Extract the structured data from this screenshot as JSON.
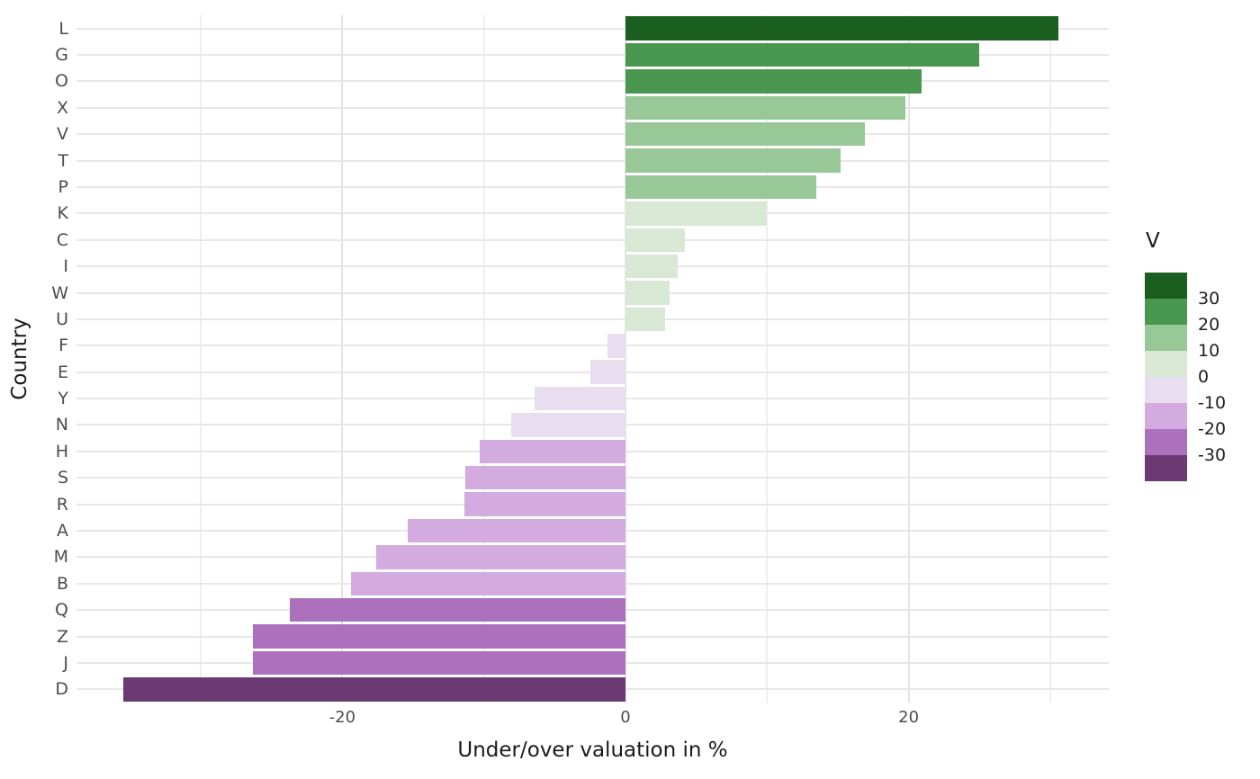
{
  "chart_data": {
    "type": "bar",
    "orientation": "horizontal",
    "title": "",
    "xlabel": "Under/over valuation in %",
    "ylabel": "Country",
    "categories": [
      "L",
      "G",
      "O",
      "X",
      "V",
      "T",
      "P",
      "K",
      "C",
      "I",
      "W",
      "U",
      "F",
      "E",
      "Y",
      "N",
      "H",
      "S",
      "R",
      "A",
      "M",
      "B",
      "Q",
      "Z",
      "J",
      "D"
    ],
    "values": [
      30.6,
      25.0,
      20.9,
      19.8,
      16.9,
      15.2,
      13.5,
      10.0,
      4.2,
      3.7,
      3.1,
      2.8,
      -1.3,
      -2.5,
      -6.4,
      -8.1,
      -10.3,
      -11.3,
      -11.4,
      -15.4,
      -17.6,
      -19.4,
      -23.7,
      -26.3,
      -26.3,
      -35.5
    ],
    "xlim": [
      -38.78,
      34.14
    ],
    "x_major_ticks": [
      -20,
      0,
      20
    ],
    "x_tick_labels": [
      "-20",
      "0",
      "20"
    ],
    "x_minor_ticks": [
      -30,
      -10,
      10,
      30
    ],
    "grid": true,
    "bar_width_ratio": 0.9,
    "legend": {
      "title": "V",
      "position": "right",
      "bin_breaks": [
        30,
        20,
        10,
        0,
        -10,
        -20,
        -30
      ],
      "bin_labels": [
        "30",
        "20",
        "10",
        "0",
        "-10",
        "-20",
        "-30"
      ],
      "bin_colors": [
        "#1a5e20",
        "#4a9750",
        "#98c798",
        "#d9e8d5",
        "#e9ddf0",
        "#d3abde",
        "#ac70bd",
        "#6b3a72"
      ]
    }
  }
}
